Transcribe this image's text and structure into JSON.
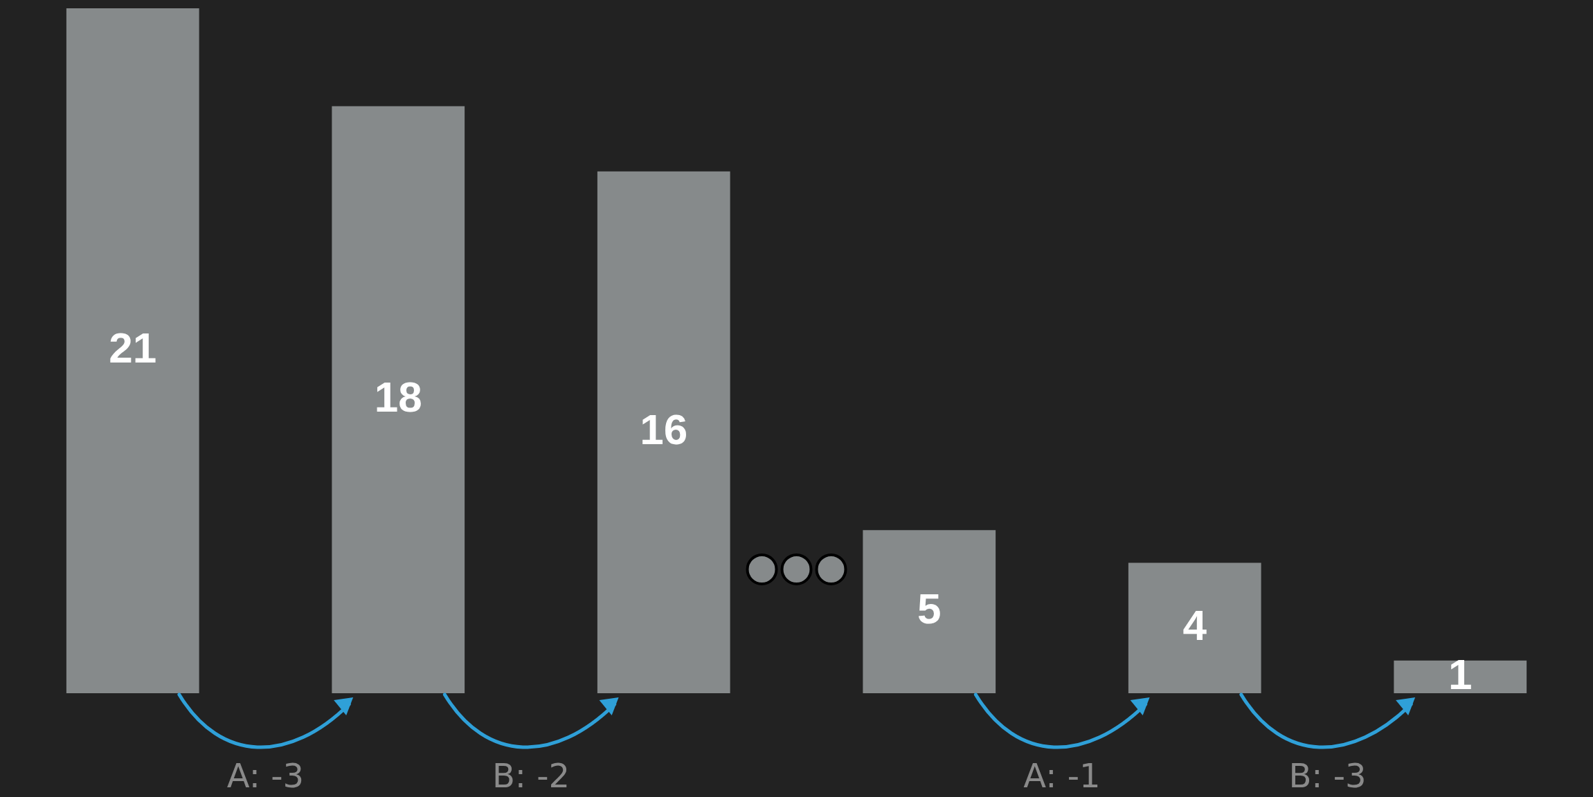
{
  "chart_data": {
    "type": "bar",
    "categories": [
      null,
      null,
      null,
      null,
      null,
      null
    ],
    "values": [
      21,
      18,
      16,
      5,
      4,
      1
    ],
    "color": "#868a8b",
    "data_labels": true,
    "annotations": [
      "A: -3",
      "B: -2",
      "A: -1",
      "B: -3"
    ]
  }
}
